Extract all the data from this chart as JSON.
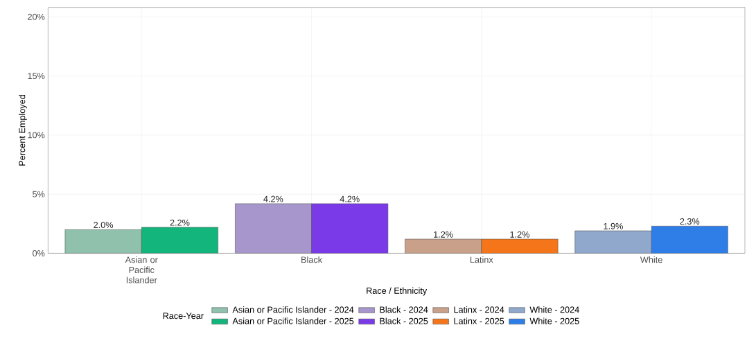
{
  "chart_data": {
    "type": "bar",
    "xlabel": "Race / Ethnicity",
    "ylabel": "Percent Employed",
    "legend_title": "Race-Year",
    "legend": "bottom",
    "grid": true,
    "categories": [
      "Asian or Pacific Islander",
      "Black",
      "Latinx",
      "White"
    ],
    "ylim": [
      0,
      20.8
    ],
    "yticks": [
      {
        "value": 0,
        "label": "0%"
      },
      {
        "value": 5,
        "label": "5%"
      },
      {
        "value": 10,
        "label": "10%"
      },
      {
        "value": 15,
        "label": "15%"
      },
      {
        "value": 20,
        "label": "20%"
      }
    ],
    "series": [
      {
        "name": "Asian or Pacific Islander - 2024",
        "color": "#8fc1ad",
        "values": [
          2.0,
          null,
          null,
          null
        ],
        "value_labels": [
          "2.0%",
          null,
          null,
          null
        ]
      },
      {
        "name": "Asian or Pacific Islander - 2025",
        "color": "#13b57c",
        "values": [
          2.2,
          null,
          null,
          null
        ],
        "value_labels": [
          "2.2%",
          null,
          null,
          null
        ]
      },
      {
        "name": "Black - 2024",
        "color": "#a696cc",
        "values": [
          null,
          4.2,
          null,
          null
        ],
        "value_labels": [
          null,
          "4.2%",
          null,
          null
        ]
      },
      {
        "name": "Black - 2025",
        "color": "#7b3ae8",
        "values": [
          null,
          4.2,
          null,
          null
        ],
        "value_labels": [
          null,
          "4.2%",
          null,
          null
        ]
      },
      {
        "name": "Latinx - 2024",
        "color": "#c9a08a",
        "values": [
          null,
          null,
          1.2,
          null
        ],
        "value_labels": [
          null,
          null,
          "1.2%",
          null
        ]
      },
      {
        "name": "Latinx - 2025",
        "color": "#f5761a",
        "values": [
          null,
          null,
          1.2,
          null
        ],
        "value_labels": [
          null,
          null,
          "1.2%",
          null
        ]
      },
      {
        "name": "White - 2024",
        "color": "#8fa8cc",
        "values": [
          null,
          null,
          null,
          1.9
        ],
        "value_labels": [
          null,
          null,
          null,
          "1.9%"
        ]
      },
      {
        "name": "White - 2025",
        "color": "#2f7ee8",
        "values": [
          null,
          null,
          null,
          2.3
        ],
        "value_labels": [
          null,
          null,
          null,
          "2.3%"
        ]
      }
    ]
  }
}
